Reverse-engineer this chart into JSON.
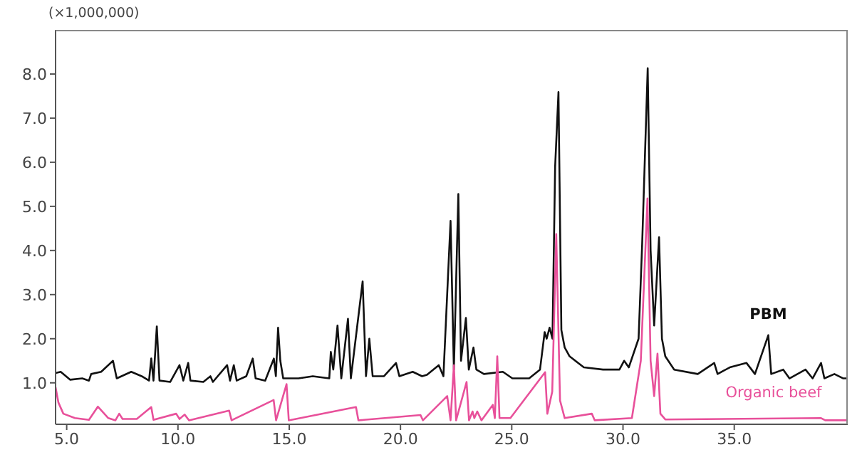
{
  "chart_data": {
    "type": "line",
    "ylabel": "(×1,000,000)",
    "xlim": [
      4.5,
      40.1
    ],
    "ylim": [
      0.06,
      9.0
    ],
    "xticks": [
      {
        "value": 5,
        "label": "5.0"
      },
      {
        "value": 10,
        "label": "10.0"
      },
      {
        "value": 15,
        "label": "15.0"
      },
      {
        "value": 20,
        "label": "20.0"
      },
      {
        "value": 25,
        "label": "25.0"
      },
      {
        "value": 30,
        "label": "30.0"
      },
      {
        "value": 35,
        "label": "35.0"
      }
    ],
    "yticks": [
      {
        "value": 1,
        "label": "1.0"
      },
      {
        "value": 2,
        "label": "2.0"
      },
      {
        "value": 3,
        "label": "3.0"
      },
      {
        "value": 4,
        "label": "4.0"
      },
      {
        "value": 5,
        "label": "5.0"
      },
      {
        "value": 6,
        "label": "6.0"
      },
      {
        "value": 7,
        "label": "7.0"
      },
      {
        "value": 8,
        "label": "8.0"
      }
    ],
    "legend": false,
    "marker": "none",
    "line_style": "solid",
    "series": [
      {
        "name": "PBM",
        "color": "#111111",
        "x": [
          4.5,
          4.73,
          5.16,
          5.7,
          6.0,
          6.1,
          6.55,
          7.08,
          7.25,
          7.9,
          8.37,
          8.7,
          8.8,
          8.9,
          9.05,
          9.17,
          9.65,
          10.07,
          10.24,
          10.46,
          10.56,
          11.14,
          11.46,
          11.57,
          12.21,
          12.34,
          12.51,
          12.64,
          13.07,
          13.36,
          13.49,
          13.92,
          14.31,
          14.4,
          14.5,
          14.6,
          14.73,
          15.42,
          16.06,
          16.8,
          16.87,
          16.98,
          17.17,
          17.34,
          17.64,
          17.77,
          18.3,
          18.45,
          18.6,
          18.75,
          19.26,
          19.8,
          19.95,
          20.55,
          20.97,
          21.19,
          21.72,
          21.93,
          22.25,
          22.4,
          22.6,
          22.72,
          22.94,
          23.07,
          23.28,
          23.41,
          23.75,
          24.6,
          25.03,
          25.78,
          26.27,
          26.48,
          26.57,
          26.7,
          26.83,
          26.95,
          27.1,
          27.23,
          27.38,
          27.6,
          28.24,
          29.1,
          29.84,
          30.05,
          30.26,
          30.7,
          30.86,
          31.11,
          31.24,
          31.4,
          31.62,
          31.75,
          31.9,
          32.3,
          33.36,
          34.1,
          34.25,
          34.8,
          35.55,
          35.93,
          36.53,
          36.66,
          37.2,
          37.48,
          38.2,
          38.52,
          38.9,
          39.05,
          39.5,
          39.9,
          40.1
        ],
        "values": [
          1.22,
          1.25,
          1.07,
          1.1,
          1.05,
          1.2,
          1.25,
          1.5,
          1.1,
          1.25,
          1.15,
          1.05,
          1.55,
          1.05,
          2.28,
          1.05,
          1.02,
          1.4,
          1.05,
          1.45,
          1.05,
          1.02,
          1.15,
          1.02,
          1.4,
          1.05,
          1.4,
          1.05,
          1.15,
          1.55,
          1.1,
          1.05,
          1.55,
          1.15,
          2.25,
          1.5,
          1.1,
          1.1,
          1.15,
          1.1,
          1.7,
          1.3,
          2.3,
          1.1,
          2.45,
          1.1,
          3.3,
          1.15,
          2.0,
          1.15,
          1.15,
          1.45,
          1.15,
          1.25,
          1.15,
          1.18,
          1.4,
          1.15,
          4.67,
          1.3,
          5.28,
          1.5,
          2.47,
          1.3,
          1.8,
          1.3,
          1.2,
          1.25,
          1.1,
          1.1,
          1.3,
          2.15,
          2.0,
          2.25,
          2.0,
          5.9,
          7.59,
          2.2,
          1.8,
          1.6,
          1.35,
          1.3,
          1.3,
          1.5,
          1.35,
          2.0,
          4.13,
          8.13,
          4.0,
          2.3,
          4.3,
          2.0,
          1.6,
          1.3,
          1.2,
          1.45,
          1.2,
          1.35,
          1.45,
          1.2,
          2.08,
          1.2,
          1.3,
          1.1,
          1.3,
          1.1,
          1.45,
          1.1,
          1.2,
          1.1,
          1.1
        ]
      },
      {
        "name": "Organic beef",
        "color": "#e8509a",
        "x": [
          4.5,
          4.63,
          4.85,
          5.37,
          6.0,
          6.4,
          6.87,
          7.19,
          7.36,
          7.51,
          8.15,
          8.8,
          8.9,
          9.92,
          10.07,
          10.3,
          10.5,
          12.3,
          12.41,
          14.3,
          14.41,
          14.88,
          14.98,
          18.0,
          18.11,
          20.9,
          21.01,
          22.1,
          22.25,
          22.4,
          22.5,
          22.97,
          23.08,
          23.24,
          23.32,
          23.45,
          23.64,
          24.15,
          24.24,
          24.35,
          24.45,
          24.94,
          26.5,
          26.6,
          26.82,
          27.0,
          27.17,
          27.38,
          28.6,
          28.73,
          30.4,
          30.8,
          31.1,
          31.24,
          31.4,
          31.55,
          31.68,
          31.9,
          38.9,
          39.09,
          40.1
        ],
        "values": [
          0.9,
          0.55,
          0.3,
          0.2,
          0.16,
          0.46,
          0.2,
          0.15,
          0.3,
          0.18,
          0.18,
          0.45,
          0.16,
          0.3,
          0.18,
          0.28,
          0.15,
          0.37,
          0.15,
          0.61,
          0.15,
          0.97,
          0.15,
          0.45,
          0.15,
          0.27,
          0.15,
          0.7,
          0.15,
          1.4,
          0.15,
          1.02,
          0.15,
          0.35,
          0.2,
          0.35,
          0.15,
          0.5,
          0.2,
          1.6,
          0.2,
          0.2,
          1.24,
          0.3,
          0.8,
          4.37,
          0.6,
          0.2,
          0.3,
          0.15,
          0.2,
          1.5,
          5.18,
          1.5,
          0.7,
          1.66,
          0.3,
          0.17,
          0.2,
          0.15,
          0.15
        ]
      }
    ]
  }
}
